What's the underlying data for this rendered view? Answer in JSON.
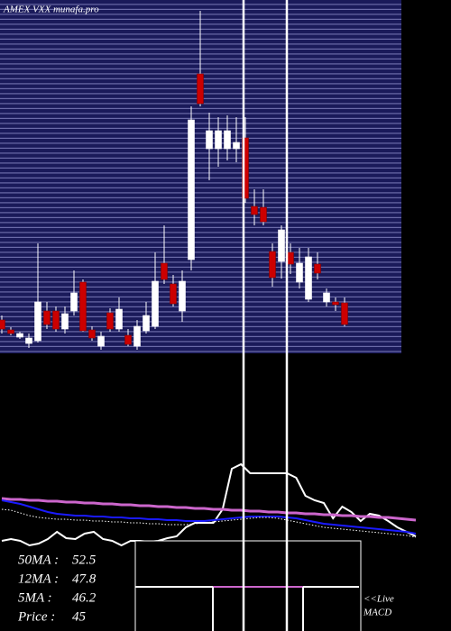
{
  "chart_data": [
    {
      "type": "candlestick",
      "title": "AMEX VXX munafa.pro",
      "ylim": [
        40,
        79.2
      ],
      "up_color": "#ffffff",
      "down_color": "#cc0000",
      "open": [
        43.7,
        42.6,
        41.8,
        41.1,
        41.4,
        44.7,
        44.7,
        42.7,
        44.7,
        47.9,
        42.6,
        40.8,
        44.5,
        42.7,
        42.0,
        40.8,
        42.5,
        43.0,
        50.0,
        47.7,
        44.7,
        50.4,
        71.0,
        62.7,
        62.7,
        62.7,
        62.7,
        63.9,
        56.3,
        56.2,
        51.3,
        50.2,
        51.2,
        47.9,
        46.0,
        49.9,
        45.7,
        45.7,
        45.6
      ],
      "high": [
        44.2,
        42.9,
        42.4,
        42.2,
        52.2,
        45.7,
        45.2,
        45.2,
        49.2,
        48.2,
        43.0,
        42.4,
        45.0,
        46.2,
        42.7,
        43.7,
        45.7,
        51.2,
        54.2,
        48.7,
        49.2,
        67.4,
        78.0,
        66.7,
        66.2,
        66.4,
        66.2,
        66.2,
        58.2,
        58.2,
        52.2,
        54.2,
        52.2,
        51.7,
        51.7,
        51.2,
        47.2,
        46.2,
        46.2
      ],
      "low": [
        42.2,
        42.0,
        41.6,
        40.6,
        41.2,
        42.7,
        42.4,
        42.2,
        44.2,
        42.4,
        41.4,
        40.4,
        42.4,
        42.4,
        40.8,
        40.4,
        42.2,
        42.7,
        47.7,
        45.2,
        43.5,
        49.2,
        67.4,
        59.2,
        60.7,
        61.4,
        61.2,
        56.7,
        54.2,
        54.2,
        47.4,
        48.3,
        48.8,
        47.2,
        45.7,
        48.2,
        45.2,
        44.7,
        43.0
      ],
      "close": [
        42.7,
        42.2,
        42.2,
        41.7,
        45.7,
        43.2,
        42.7,
        44.4,
        46.7,
        42.5,
        41.7,
        41.9,
        42.7,
        44.9,
        41.0,
        43.0,
        44.2,
        48.0,
        48.2,
        45.5,
        48.0,
        65.9,
        67.7,
        64.7,
        64.7,
        64.7,
        63.4,
        57.2,
        55.4,
        54.6,
        48.4,
        53.7,
        49.9,
        50.0,
        50.7,
        48.9,
        46.7,
        45.4,
        43.2
      ]
    },
    {
      "type": "line",
      "ylim": [
        -60,
        60
      ],
      "indicator": "MACD",
      "live": "<<Live",
      "info": [
        {
          "label": "50MA :",
          "value": 52.5
        },
        {
          "label": "12MA :",
          "value": 47.8
        },
        {
          "label": "5MA :",
          "value": 46.2
        },
        {
          "label": "Price :",
          "value": 45
        }
      ],
      "series": [
        {
          "color": "#ffffff",
          "width": 2,
          "dashed": false,
          "values": [
            -40,
            -38,
            -40,
            -45,
            -43,
            -38,
            -30,
            -37,
            -38,
            -32,
            -30,
            -38,
            -40,
            -45,
            -40,
            -40,
            -41,
            -40,
            -37,
            -35,
            -25,
            -20,
            -20,
            -20,
            -5,
            40,
            45,
            35,
            35,
            35,
            35,
            35,
            30,
            10,
            5,
            2,
            -15,
            -2,
            -8,
            -18,
            -10,
            -12,
            -18,
            -25,
            -30,
            -35
          ]
        },
        {
          "color": "#cc66cc",
          "width": 3,
          "dashed": false,
          "values": [
            7,
            6,
            6,
            5,
            5,
            4,
            4,
            3,
            3,
            2,
            2,
            1,
            1,
            0,
            0,
            -1,
            -1,
            -2,
            -2,
            -3,
            -3,
            -4,
            -4,
            -5,
            -5,
            -6,
            -6,
            -7,
            -7,
            -8,
            -8,
            -9,
            -9,
            -10,
            -10,
            -11,
            -11,
            -12,
            -12,
            -13,
            -13,
            -14,
            -14,
            -15,
            -16,
            -17
          ]
        },
        {
          "color": "#1a1aff",
          "width": 2,
          "dashed": false,
          "values": [
            5,
            3,
            1,
            -2,
            -5,
            -8,
            -10,
            -11,
            -12,
            -12,
            -13,
            -13,
            -14,
            -14,
            -15,
            -15,
            -16,
            -16,
            -17,
            -17,
            -18,
            -18,
            -18,
            -17,
            -16,
            -15,
            -14,
            -13,
            -13,
            -13,
            -13,
            -14,
            -15,
            -17,
            -19,
            -21,
            -22,
            -23,
            -24,
            -25,
            -26,
            -27,
            -28,
            -29,
            -30,
            -32
          ]
        },
        {
          "color": "#ffffff",
          "width": 1,
          "dashed": true,
          "values": [
            -5,
            -6,
            -9,
            -12,
            -14,
            -15,
            -16,
            -16,
            -17,
            -17,
            -18,
            -18,
            -19,
            -19,
            -20,
            -20,
            -21,
            -21,
            -22,
            -22,
            -22,
            -21,
            -20,
            -19,
            -18,
            -17,
            -16,
            -15,
            -14,
            -14,
            -15,
            -17,
            -19,
            -21,
            -23,
            -25,
            -26,
            -27,
            -28,
            -29,
            -30,
            -31,
            -32,
            -33,
            -34,
            -36
          ]
        }
      ]
    }
  ]
}
